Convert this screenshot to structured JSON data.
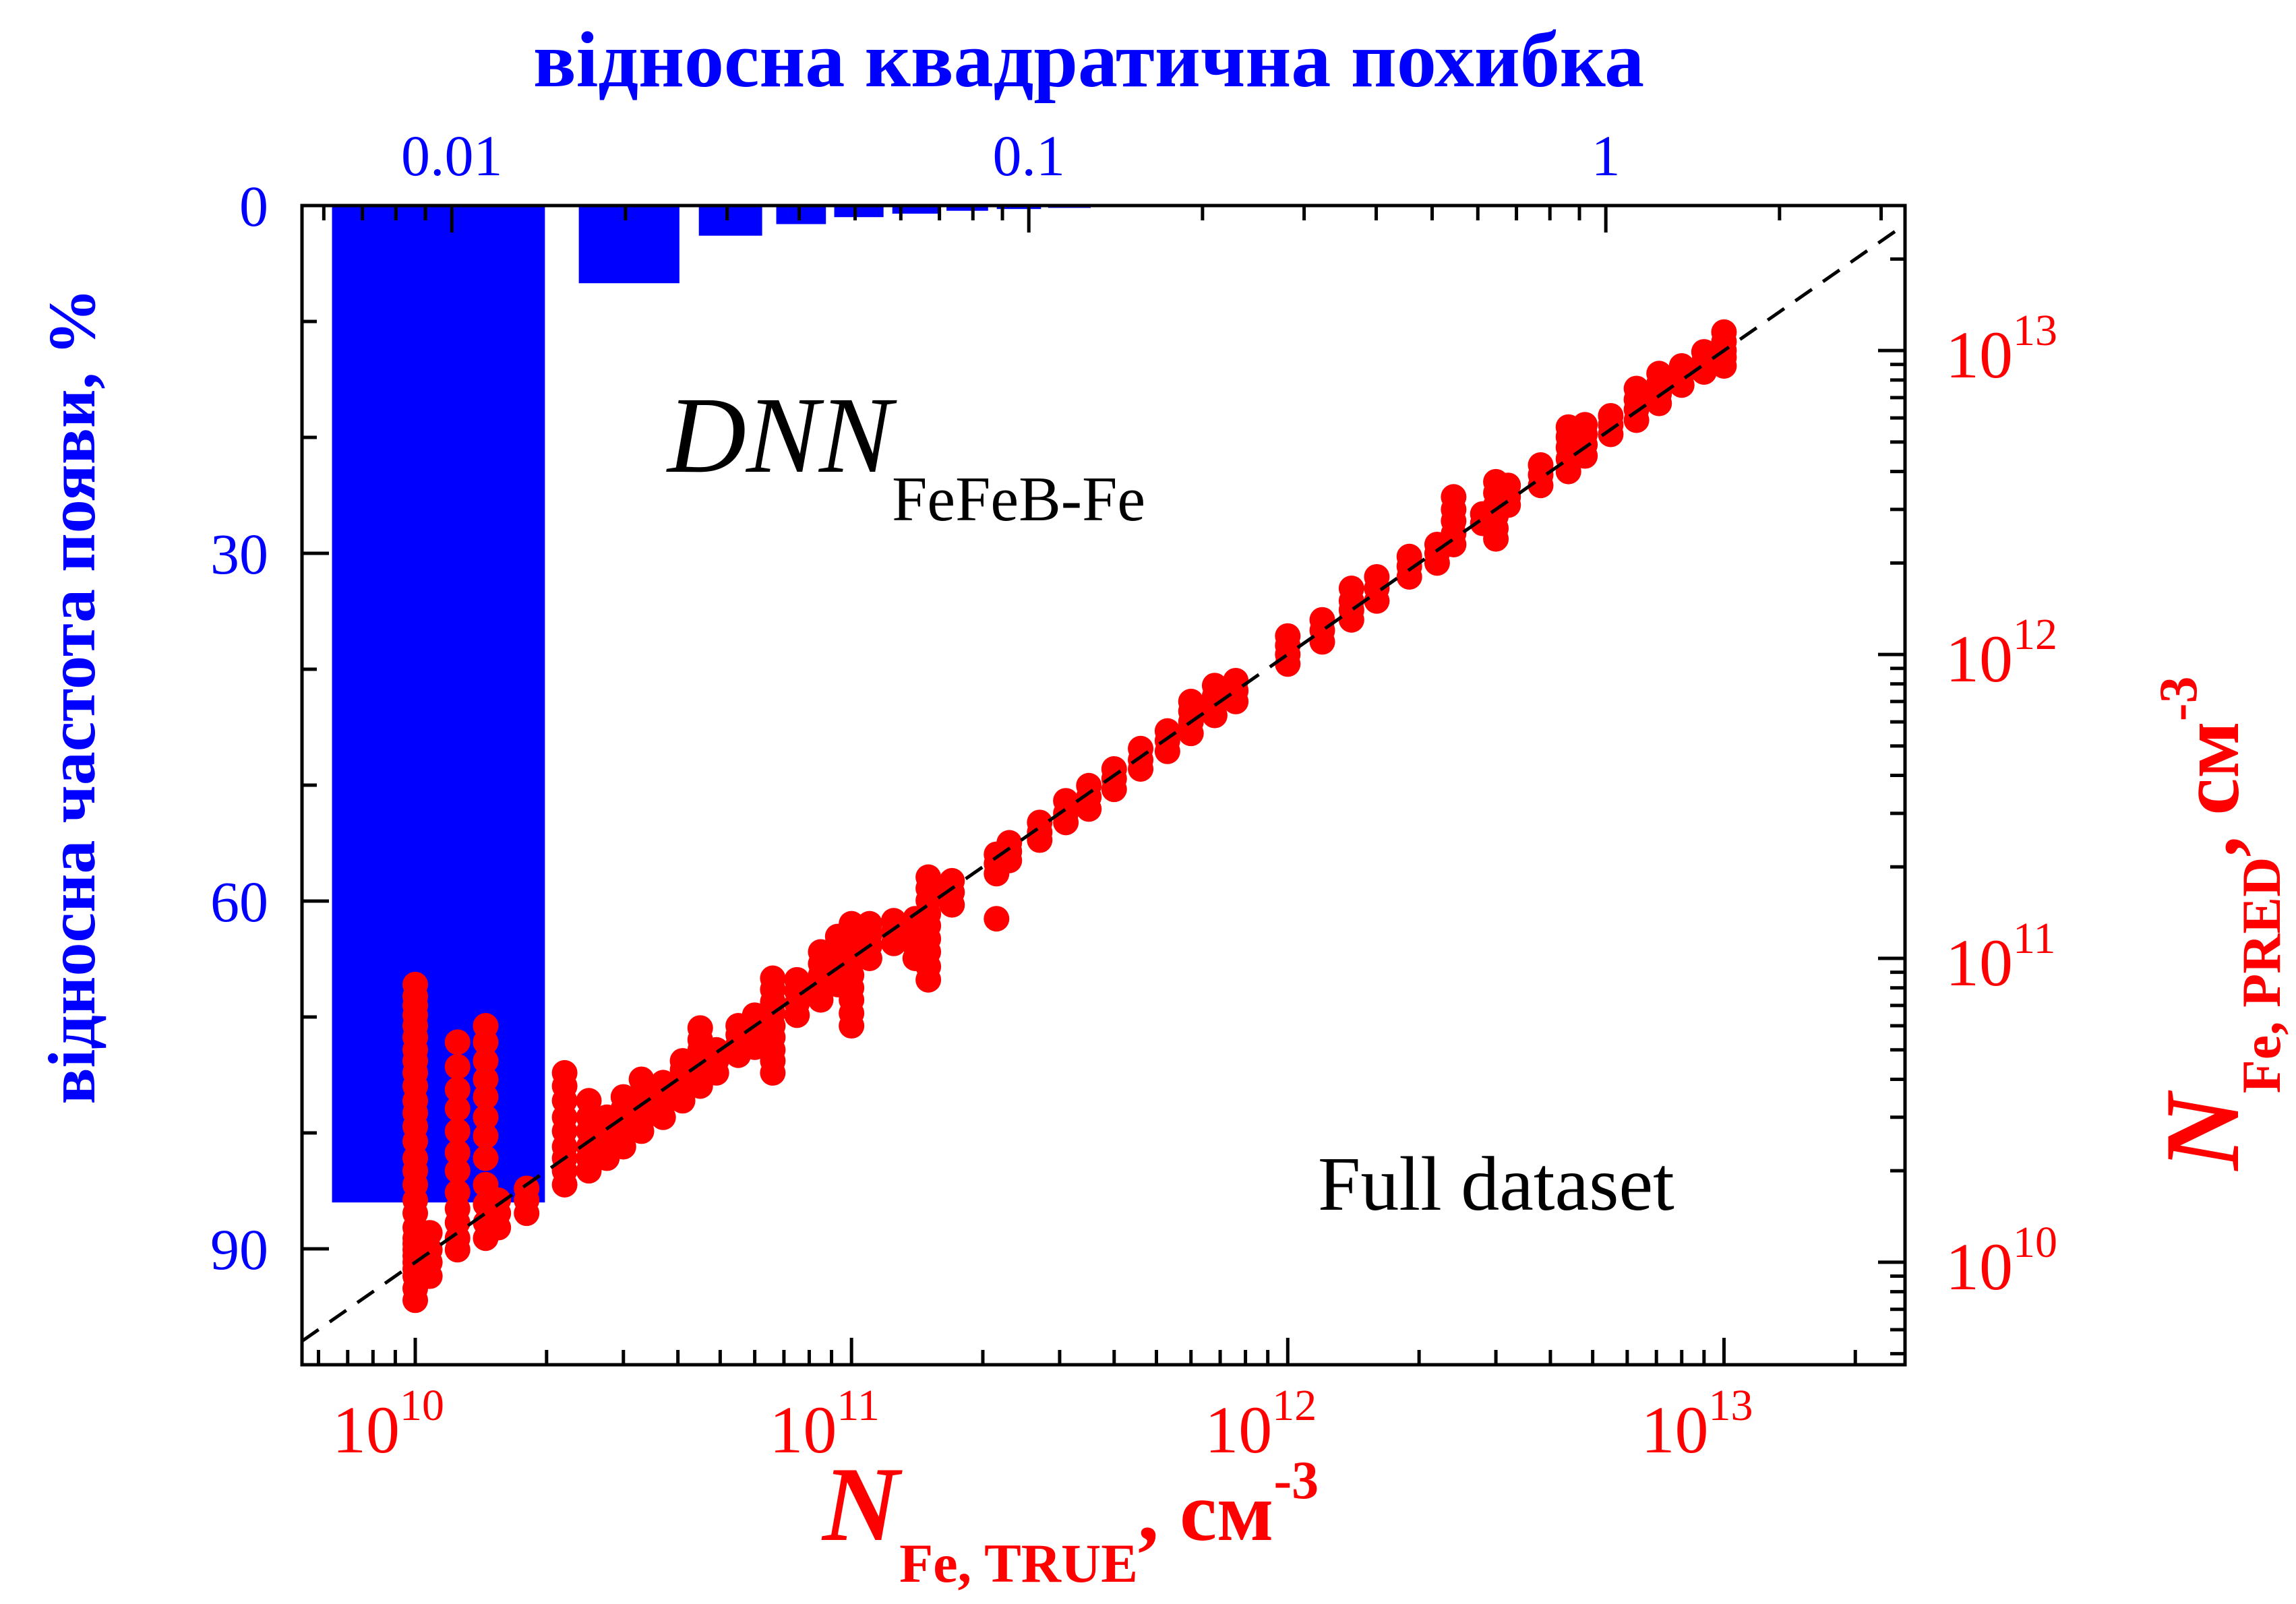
{
  "chart_data": {
    "type": "scatter",
    "annotations": {
      "model_main": "DNN",
      "model_sub": "FeFeB-Fe",
      "dataset": "Full dataset"
    },
    "colors": {
      "histogram": "#0000ff",
      "scatter": "#ff0000",
      "axes": "#000000",
      "reference_line": "#000000"
    },
    "x_axis": {
      "scale": "log",
      "range": [
        5500000000.0,
        26000000000000.0
      ],
      "major_tick_labels": [
        {
          "value": 10000000000.0,
          "base": "10",
          "exp": "10"
        },
        {
          "value": 100000000000.0,
          "base": "10",
          "exp": "11"
        },
        {
          "value": 1000000000000.0,
          "base": "10",
          "exp": "12"
        },
        {
          "value": 10000000000000.0,
          "base": "10",
          "exp": "13"
        }
      ],
      "label": {
        "symbol": "N",
        "subscript": "Fe, TRUE",
        "unit": ", см",
        "unit_exp": "-3"
      },
      "color": "#ff0000"
    },
    "y_right_axis": {
      "scale": "log",
      "range": [
        4600000000.0,
        30000000000000.0
      ],
      "major_tick_labels": [
        {
          "value": 10000000000.0,
          "base": "10",
          "exp": "10"
        },
        {
          "value": 100000000000.0,
          "base": "10",
          "exp": "11"
        },
        {
          "value": 1000000000000.0,
          "base": "10",
          "exp": "12"
        },
        {
          "value": 10000000000000.0,
          "base": "10",
          "exp": "13"
        }
      ],
      "label": {
        "symbol": "N",
        "subscript": "Fe, PRED",
        "unit": ", см",
        "unit_exp": "-3"
      },
      "color": "#ff0000"
    },
    "x_top_axis": {
      "scale": "log",
      "range": [
        0.0055,
        3.3
      ],
      "major_tick_labels": [
        {
          "value": 0.01,
          "label": "0.01"
        },
        {
          "value": 0.1,
          "label": "0.1"
        },
        {
          "value": 1,
          "label": "1"
        }
      ],
      "label": "відносна квадратична похибка",
      "color": "#0000ff"
    },
    "y_left_axis": {
      "scale": "linear",
      "inverted": true,
      "range": [
        0,
        100
      ],
      "major_ticks": [
        0,
        30,
        60,
        90
      ],
      "minor_ticks": [
        10,
        20,
        40,
        50,
        70,
        80,
        100
      ],
      "label": "відносна частота появи, %",
      "color": "#0000ff"
    },
    "histogram_series": {
      "name": "відносна частота появи",
      "bins": [
        {
          "from": 0.0062,
          "to": 0.0145,
          "value": 86.0
        },
        {
          "from": 0.0166,
          "to": 0.0248,
          "value": 6.7
        },
        {
          "from": 0.0268,
          "to": 0.0345,
          "value": 2.6
        },
        {
          "from": 0.0365,
          "to": 0.0445,
          "value": 1.6
        },
        {
          "from": 0.046,
          "to": 0.056,
          "value": 1.0
        },
        {
          "from": 0.058,
          "to": 0.07,
          "value": 0.7
        },
        {
          "from": 0.072,
          "to": 0.085,
          "value": 0.45
        },
        {
          "from": 0.088,
          "to": 0.105,
          "value": 0.3
        },
        {
          "from": 0.108,
          "to": 0.128,
          "value": 0.2
        }
      ]
    },
    "scatter_series": {
      "name": "N_Fe predicted vs true",
      "groups": [
        {
          "x": 10000000000.0,
          "y": [
            7500000000.0,
            8200000000.0,
            9000000000.0,
            9500000000.0,
            10000000000.0,
            10500000000.0,
            11000000000.0,
            11500000000.0,
            12000000000.0,
            13000000000.0,
            14500000000.0,
            16000000000.0,
            18000000000.0,
            20000000000.0,
            22000000000.0,
            25000000000.0,
            28000000000.0,
            31000000000.0,
            34000000000.0,
            38000000000.0,
            42000000000.0,
            46000000000.0,
            50000000000.0,
            55000000000.0,
            60000000000.0,
            65000000000.0,
            70000000000.0,
            75000000000.0,
            82000000000.0
          ]
        },
        {
          "x": 10800000000.0,
          "y": [
            9000000000.0,
            10000000000.0,
            11000000000.0,
            12500000000.0
          ]
        },
        {
          "x": 12500000000.0,
          "y": [
            11000000000.0,
            12000000000.0,
            13500000000.0,
            15000000000.0,
            17000000000.0,
            20000000000.0,
            23000000000.0,
            27000000000.0,
            32000000000.0,
            37000000000.0,
            44000000000.0,
            53000000000.0
          ]
        },
        {
          "x": 14500000000.0,
          "y": [
            12000000000.0,
            13500000000.0,
            15500000000.0,
            18000000000.0,
            22000000000.0,
            26000000000.0,
            30000000000.0,
            35000000000.0,
            40000000000.0,
            46000000000.0,
            53000000000.0,
            60000000000.0
          ]
        },
        {
          "x": 15500000000.0,
          "y": [
            13000000000.0,
            14500000000.0,
            16000000000.0
          ]
        },
        {
          "x": 18000000000.0,
          "y": [
            14500000000.0,
            16000000000.0,
            17500000000.0
          ]
        },
        {
          "x": 22000000000.0,
          "y": [
            18000000000.0,
            20000000000.0,
            22000000000.0,
            24000000000.0,
            27000000000.0,
            30000000000.0,
            34000000000.0,
            38000000000.0,
            42000000000.0
          ]
        },
        {
          "x": 25000000000.0,
          "y": [
            20000000000.0,
            22000000000.0,
            24000000000.0,
            27000000000.0,
            30000000000.0,
            34000000000.0
          ]
        },
        {
          "x": 27500000000.0,
          "y": [
            22000000000.0,
            24000000000.0,
            27000000000.0,
            30000000000.0
          ]
        },
        {
          "x": 30000000000.0,
          "y": [
            24000000000.0,
            26000000000.0,
            29000000000.0,
            32000000000.0,
            35000000000.0
          ]
        },
        {
          "x": 33000000000.0,
          "y": [
            27000000000.0,
            29000000000.0,
            32000000000.0,
            36000000000.0,
            40000000000.0
          ]
        },
        {
          "x": 37000000000.0,
          "y": [
            30000000000.0,
            33000000000.0,
            36000000000.0,
            39000000000.0
          ]
        },
        {
          "x": 41000000000.0,
          "y": [
            34000000000.0,
            37000000000.0,
            40000000000.0,
            43000000000.0,
            46000000000.0
          ]
        },
        {
          "x": 45000000000.0,
          "y": [
            38000000000.0,
            42000000000.0,
            46000000000.0,
            50000000000.0,
            54000000000.0,
            59000000000.0
          ]
        },
        {
          "x": 49000000000.0,
          "y": [
            42000000000.0,
            46000000000.0,
            50000000000.0
          ]
        },
        {
          "x": 55000000000.0,
          "y": [
            48000000000.0,
            52000000000.0,
            56000000000.0,
            60000000000.0
          ]
        },
        {
          "x": 60000000000.0,
          "y": [
            51000000000.0,
            55000000000.0,
            60000000000.0,
            65000000000.0
          ]
        },
        {
          "x": 66000000000.0,
          "y": [
            42000000000.0,
            46000000000.0,
            50000000000.0,
            55000000000.0,
            60000000000.0,
            66000000000.0,
            72000000000.0,
            79000000000.0,
            86000000000.0
          ]
        },
        {
          "x": 75000000000.0,
          "y": [
            65000000000.0,
            71000000000.0,
            78000000000.0,
            85000000000.0
          ]
        },
        {
          "x": 85000000000.0,
          "y": [
            73000000000.0,
            80000000000.0,
            88000000000.0,
            96000000000.0,
            105000000000.0
          ]
        },
        {
          "x": 93000000000.0,
          "y": [
            82000000000.0,
            90000000000.0,
            99000000000.0,
            108000000000.0,
            118000000000.0
          ]
        },
        {
          "x": 100000000000.0,
          "y": [
            60000000000.0,
            66000000000.0,
            73000000000.0,
            80000000000.0,
            88000000000.0,
            97000000000.0,
            107000000000.0,
            118000000000.0,
            130000000000.0
          ]
        },
        {
          "x": 110000000000.0,
          "y": [
            100000000000.0,
            110000000000.0,
            120000000000.0,
            130000000000.0
          ]
        },
        {
          "x": 125000000000.0,
          "y": [
            112000000000.0,
            122000000000.0,
            133000000000.0
          ]
        },
        {
          "x": 140000000000.0,
          "y": [
            100000000000.0,
            110000000000.0,
            122000000000.0,
            135000000000.0
          ]
        },
        {
          "x": 150000000000.0,
          "y": [
            85000000000.0,
            94000000000.0,
            105000000000.0,
            116000000000.0,
            128000000000.0,
            140000000000.0,
            155000000000.0,
            170000000000.0,
            185000000000.0
          ]
        },
        {
          "x": 170000000000.0,
          "y": [
            150000000000.0,
            165000000000.0,
            180000000000.0
          ]
        },
        {
          "x": 215000000000.0,
          "y": [
            135000000000.0,
            190000000000.0,
            205000000000.0,
            220000000000.0
          ]
        },
        {
          "x": 230000000000.0,
          "y": [
            210000000000.0,
            225000000000.0,
            240000000000.0
          ]
        },
        {
          "x": 270000000000.0,
          "y": [
            245000000000.0,
            260000000000.0,
            280000000000.0
          ]
        },
        {
          "x": 310000000000.0,
          "y": [
            280000000000.0,
            300000000000.0,
            330000000000.0
          ]
        },
        {
          "x": 350000000000.0,
          "y": [
            310000000000.0,
            340000000000.0,
            370000000000.0
          ]
        },
        {
          "x": 400000000000.0,
          "y": [
            360000000000.0,
            390000000000.0,
            420000000000.0
          ]
        },
        {
          "x": 460000000000.0,
          "y": [
            420000000000.0,
            450000000000.0,
            490000000000.0
          ]
        },
        {
          "x": 530000000000.0,
          "y": [
            480000000000.0,
            520000000000.0,
            560000000000.0
          ]
        },
        {
          "x": 600000000000.0,
          "y": [
            550000000000.0,
            600000000000.0,
            650000000000.0,
            700000000000.0
          ]
        },
        {
          "x": 680000000000.0,
          "y": [
            630000000000.0,
            680000000000.0,
            730000000000.0,
            790000000000.0
          ]
        },
        {
          "x": 760000000000.0,
          "y": [
            700000000000.0,
            760000000000.0,
            820000000000.0
          ]
        },
        {
          "x": 1000000000000.0,
          "y": [
            930000000000.0,
            1000000000000.0,
            1070000000000.0,
            1150000000000.0
          ]
        },
        {
          "x": 1200000000000.0,
          "y": [
            1100000000000.0,
            1200000000000.0,
            1300000000000.0
          ]
        },
        {
          "x": 1400000000000.0,
          "y": [
            1300000000000.0,
            1400000000000.0,
            1500000000000.0,
            1650000000000.0
          ]
        },
        {
          "x": 1600000000000.0,
          "y": [
            1500000000000.0,
            1650000000000.0,
            1800000000000.0
          ]
        },
        {
          "x": 1900000000000.0,
          "y": [
            1800000000000.0,
            1950000000000.0,
            2100000000000.0
          ]
        },
        {
          "x": 2200000000000.0,
          "y": [
            2000000000000.0,
            2150000000000.0,
            2300000000000.0
          ]
        },
        {
          "x": 2400000000000.0,
          "y": [
            2300000000000.0,
            2500000000000.0,
            2750000000000.0,
            3000000000000.0,
            3300000000000.0
          ]
        },
        {
          "x": 2800000000000.0,
          "y": [
            2700000000000.0,
            2900000000000.0
          ]
        },
        {
          "x": 3000000000000.0,
          "y": [
            2400000000000.0,
            2600000000000.0,
            2850000000000.0,
            3100000000000.0,
            3400000000000.0,
            3700000000000.0
          ]
        },
        {
          "x": 3200000000000.0,
          "y": [
            3100000000000.0,
            3300000000000.0,
            3600000000000.0
          ]
        },
        {
          "x": 3800000000000.0,
          "y": [
            3600000000000.0,
            3900000000000.0,
            4200000000000.0
          ]
        },
        {
          "x": 4400000000000.0,
          "y": [
            4000000000000.0,
            4400000000000.0,
            4800000000000.0,
            5200000000000.0,
            5600000000000.0
          ]
        },
        {
          "x": 4800000000000.0,
          "y": [
            4500000000000.0,
            4900000000000.0,
            5300000000000.0,
            5700000000000.0
          ]
        },
        {
          "x": 5500000000000.0,
          "y": [
            5300000000000.0,
            5700000000000.0,
            6100000000000.0
          ]
        },
        {
          "x": 6300000000000.0,
          "y": [
            5900000000000.0,
            6400000000000.0,
            6900000000000.0,
            7500000000000.0
          ]
        },
        {
          "x": 7100000000000.0,
          "y": [
            6700000000000.0,
            7200000000000.0,
            7800000000000.0,
            8400000000000.0
          ]
        },
        {
          "x": 8000000000000.0,
          "y": [
            7700000000000.0,
            8300000000000.0,
            8900000000000.0
          ]
        },
        {
          "x": 9000000000000.0,
          "y": [
            8500000000000.0,
            9200000000000.0,
            9900000000000.0
          ]
        },
        {
          "x": 10000000000000.0,
          "y": [
            8900000000000.0,
            9500000000000.0,
            10000000000000.0,
            10700000000000.0,
            11500000000000.0
          ]
        }
      ]
    },
    "reference_line": {
      "label": "y = x",
      "from": 5500000000.0,
      "to": 26000000000000.0
    }
  }
}
